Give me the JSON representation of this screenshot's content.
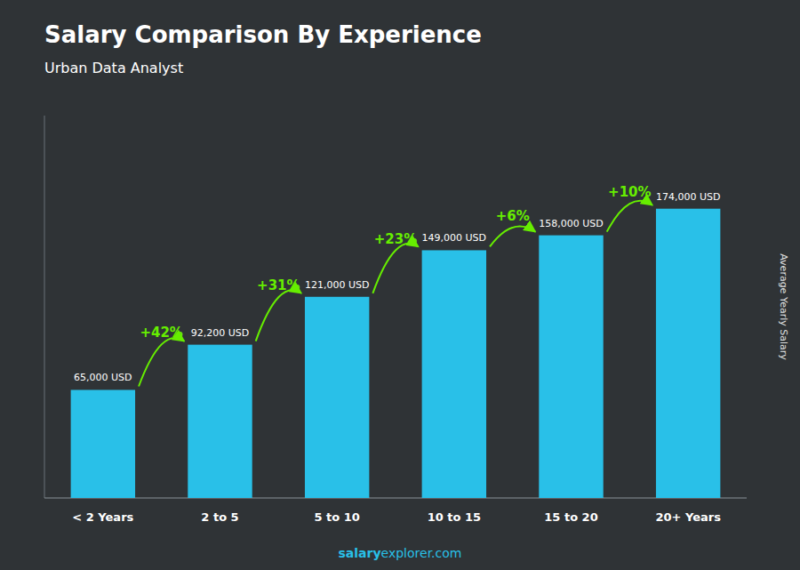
{
  "chart_data": {
    "type": "bar",
    "title": "Salary Comparison By Experience",
    "subtitle": "Urban Data Analyst",
    "ylabel": "Average Yearly Salary",
    "categories": [
      "< 2 Years",
      "2 to 5",
      "5 to 10",
      "10 to 15",
      "15 to 20",
      "20+ Years"
    ],
    "values": [
      65000,
      92200,
      121000,
      149000,
      158000,
      174000
    ],
    "value_labels": [
      "65,000 USD",
      "92,200 USD",
      "121,000 USD",
      "149,000 USD",
      "158,000 USD",
      "174,000 USD"
    ],
    "data_labels": true,
    "annotations": [
      "+42%",
      "+31%",
      "+23%",
      "+6%",
      "+10%"
    ],
    "footer": [
      "salary",
      "explorer.com"
    ],
    "color": "#29C0E8",
    "ylim": [
      0,
      230000
    ],
    "tick_labels": "x",
    "grid": false
  }
}
